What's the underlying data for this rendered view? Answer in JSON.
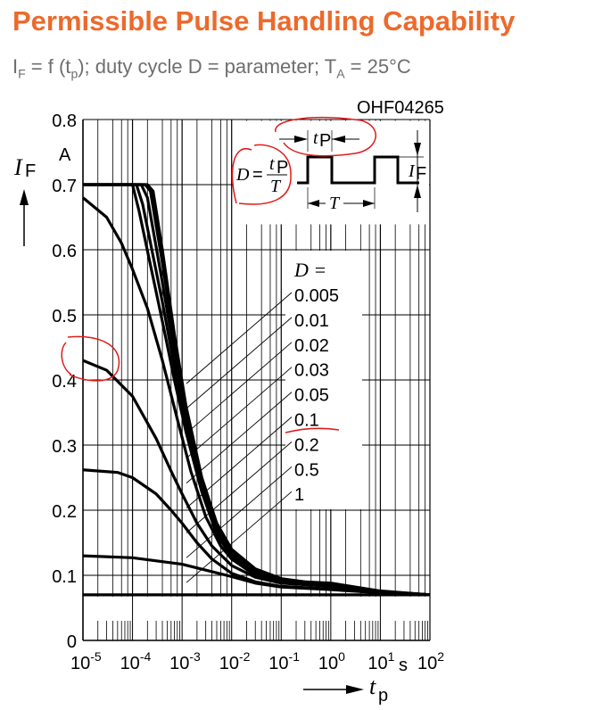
{
  "title": "Permissible Pulse Handling Capability",
  "subtitle": {
    "a": "I",
    "a_sub": "F",
    "b": " = f (t",
    "b_sub": "p",
    "c": "); duty cycle D = parameter; T",
    "c_sub": "A",
    "d": " = 25°C"
  },
  "chart_data": {
    "type": "line",
    "code": "OHF04265",
    "xscale": "log",
    "xlim": [
      1e-05,
      100
    ],
    "ylim": [
      0,
      0.8
    ],
    "xlabel": {
      "sym": "t",
      "sub": "p",
      "unit": "s"
    },
    "ylabel": {
      "sym": "I",
      "sub": "F",
      "unit": "A"
    },
    "y_ticks": [
      "0",
      "0.1",
      "0.2",
      "0.3",
      "0.4",
      "0.5",
      "0.6",
      "0.7",
      "0.8"
    ],
    "x_ticks": [
      {
        "b": "10",
        "e": "-5"
      },
      {
        "b": "10",
        "e": "-4"
      },
      {
        "b": "10",
        "e": "-3"
      },
      {
        "b": "10",
        "e": "-2"
      },
      {
        "b": "10",
        "e": "-1"
      },
      {
        "b": "10",
        "e": "0"
      },
      {
        "b": "10",
        "e": "1"
      },
      {
        "b": "10",
        "e": "2"
      }
    ],
    "grid": true,
    "legend_title": "D =",
    "inset": {
      "formula_lhs": "D",
      "eq": "=",
      "num": "t",
      "num_sub": "P",
      "den": "T",
      "tp": "t",
      "tp_sub": "P",
      "T": "T",
      "IF": "I",
      "IF_sub": "F"
    },
    "series": [
      {
        "name": "0.005",
        "x": [
          1e-05,
          0.0002,
          0.00026,
          0.0004,
          0.0007,
          0.0012,
          0.0025,
          0.005,
          0.01,
          0.03,
          0.1,
          0.3,
          1,
          10,
          100
        ],
        "y": [
          0.7,
          0.7,
          0.69,
          0.6,
          0.47,
          0.36,
          0.25,
          0.18,
          0.14,
          0.11,
          0.095,
          0.09,
          0.088,
          0.076,
          0.07
        ]
      },
      {
        "name": "0.01",
        "x": [
          1e-05,
          0.00018,
          0.00023,
          0.0004,
          0.0007,
          0.0012,
          0.0025,
          0.005,
          0.01,
          0.03,
          0.1,
          0.3,
          1,
          10,
          100
        ],
        "y": [
          0.7,
          0.7,
          0.69,
          0.58,
          0.46,
          0.35,
          0.245,
          0.175,
          0.138,
          0.108,
          0.094,
          0.09,
          0.087,
          0.075,
          0.07
        ]
      },
      {
        "name": "0.02",
        "x": [
          1e-05,
          0.00015,
          0.0002,
          0.0004,
          0.0007,
          0.0012,
          0.0025,
          0.005,
          0.01,
          0.03,
          0.1,
          0.3,
          1,
          10,
          100
        ],
        "y": [
          0.7,
          0.7,
          0.68,
          0.55,
          0.44,
          0.34,
          0.24,
          0.17,
          0.135,
          0.106,
          0.093,
          0.089,
          0.086,
          0.075,
          0.07
        ]
      },
      {
        "name": "0.03",
        "x": [
          1e-05,
          0.00012,
          0.00016,
          0.0004,
          0.0007,
          0.0012,
          0.0025,
          0.005,
          0.01,
          0.03,
          0.1,
          0.3,
          1,
          10,
          100
        ],
        "y": [
          0.7,
          0.7,
          0.67,
          0.52,
          0.42,
          0.33,
          0.235,
          0.168,
          0.132,
          0.104,
          0.092,
          0.088,
          0.085,
          0.075,
          0.07
        ]
      },
      {
        "name": "0.05",
        "x": [
          1e-05,
          0.0001,
          0.000135,
          0.0004,
          0.0007,
          0.0012,
          0.0025,
          0.005,
          0.01,
          0.03,
          0.1,
          0.3,
          1,
          10,
          100
        ],
        "y": [
          0.7,
          0.7,
          0.66,
          0.49,
          0.4,
          0.32,
          0.228,
          0.163,
          0.128,
          0.102,
          0.091,
          0.087,
          0.085,
          0.075,
          0.07
        ]
      },
      {
        "name": "0.1",
        "x": [
          1e-05,
          3e-05,
          6e-05,
          0.0001,
          0.0002,
          0.0004,
          0.0008,
          0.0015,
          0.003,
          0.006,
          0.01,
          0.03,
          0.1,
          1,
          10,
          100
        ],
        "y": [
          0.68,
          0.65,
          0.61,
          0.57,
          0.51,
          0.43,
          0.34,
          0.26,
          0.19,
          0.145,
          0.125,
          0.1,
          0.09,
          0.085,
          0.075,
          0.07
        ]
      },
      {
        "name": "0.2",
        "x": [
          1e-05,
          3e-05,
          0.0001,
          0.0003,
          0.0006,
          0.001,
          0.002,
          0.004,
          0.01,
          0.03,
          0.1,
          1,
          10,
          100
        ],
        "y": [
          0.43,
          0.415,
          0.375,
          0.31,
          0.26,
          0.225,
          0.18,
          0.145,
          0.115,
          0.097,
          0.088,
          0.083,
          0.075,
          0.07
        ]
      },
      {
        "name": "0.5",
        "x": [
          1e-05,
          5e-05,
          0.0001,
          0.0003,
          0.0006,
          0.001,
          0.002,
          0.004,
          0.01,
          0.03,
          0.1,
          1,
          10,
          100
        ],
        "y": [
          0.262,
          0.258,
          0.25,
          0.225,
          0.2,
          0.18,
          0.15,
          0.125,
          0.103,
          0.09,
          0.083,
          0.079,
          0.073,
          0.07
        ]
      },
      {
        "name": "1",
        "x": [
          1e-05,
          0.0001,
          0.001,
          0.003,
          0.01,
          0.03,
          0.1,
          1,
          10,
          100
        ],
        "y": [
          0.13,
          0.127,
          0.117,
          0.108,
          0.098,
          0.088,
          0.082,
          0.078,
          0.073,
          0.07
        ]
      },
      {
        "name": "",
        "x": [
          1e-05,
          100
        ],
        "y": [
          0.07,
          0.07
        ]
      }
    ]
  }
}
